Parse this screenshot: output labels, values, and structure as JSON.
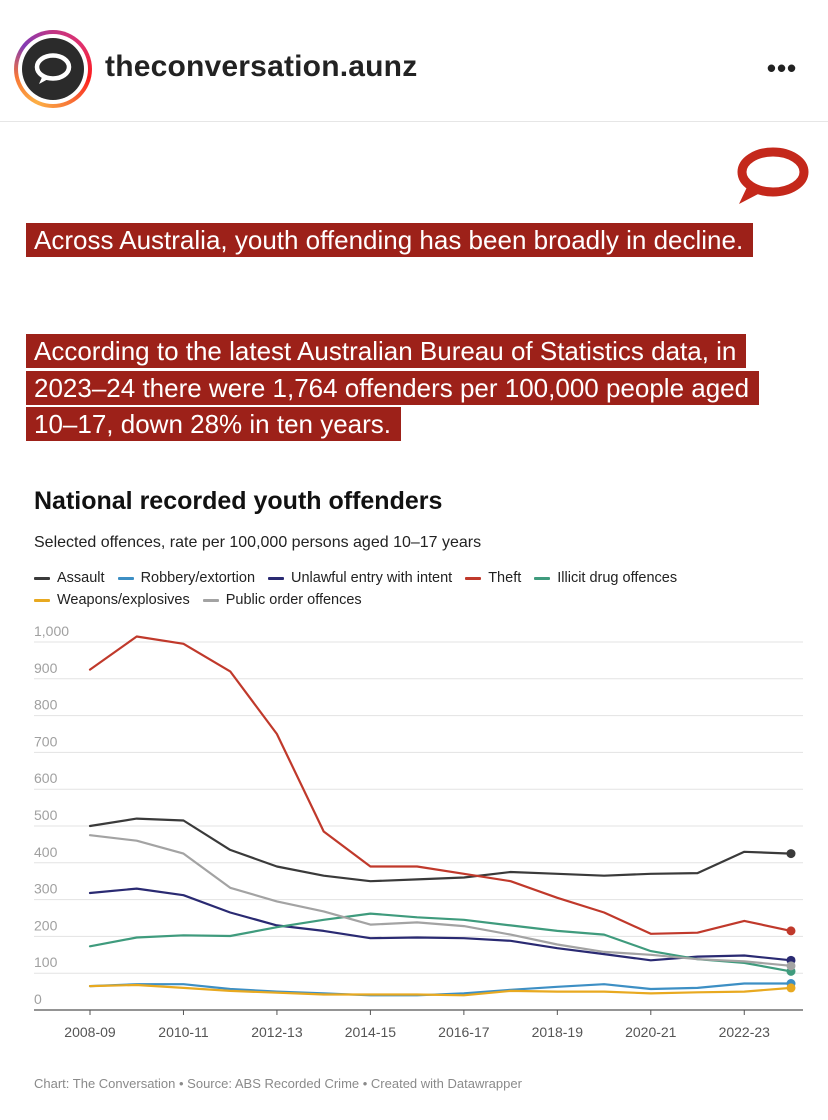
{
  "header": {
    "account_name": "theconversation.aunz",
    "more_label": "•••"
  },
  "post": {
    "headline_1": "Across Australia, youth offending has been broadly in decline.",
    "headline_2": "According to the latest Australian Bureau of Statistics data, in 2023–24 there were 1,764 offenders per 100,000 people aged 10–17, down 28% in ten years."
  },
  "colors": {
    "brand_red": "#9d2119",
    "assault": "#3a3a3a",
    "robbery": "#3d8fc4",
    "unlawful": "#2a2a72",
    "theft": "#c0392b",
    "drug": "#3f9b7d",
    "weapons": "#e8a920",
    "public_order": "#a3a3a3"
  },
  "chart_data": {
    "type": "line",
    "title": "National recorded youth offenders",
    "subtitle": "Selected offences, rate per 100,000 persons aged 10–17 years",
    "xlabel": "",
    "ylabel": "",
    "ylim": [
      0,
      1000
    ],
    "y_ticks": [
      "1,000",
      "900",
      "800",
      "700",
      "600",
      "500",
      "400",
      "300",
      "200",
      "100",
      "0"
    ],
    "x_ticks": [
      "2008-09",
      "2010-11",
      "2012-13",
      "2014-15",
      "2016-17",
      "2018-19",
      "2020-21",
      "2022-23"
    ],
    "x": [
      "2008-09",
      "2009-10",
      "2010-11",
      "2011-12",
      "2012-13",
      "2013-14",
      "2014-15",
      "2015-16",
      "2016-17",
      "2017-18",
      "2018-19",
      "2019-20",
      "2020-21",
      "2021-22",
      "2022-23",
      "2023-24"
    ],
    "legend_position": "top",
    "series": [
      {
        "name": "Assault",
        "color": "#3a3a3a",
        "values": [
          500,
          520,
          515,
          435,
          390,
          365,
          350,
          355,
          360,
          375,
          370,
          365,
          370,
          372,
          430,
          425
        ]
      },
      {
        "name": "Robbery/extortion",
        "color": "#3d8fc4",
        "values": [
          65,
          70,
          70,
          57,
          50,
          45,
          40,
          40,
          45,
          55,
          63,
          70,
          57,
          60,
          72,
          72
        ]
      },
      {
        "name": "Unlawful entry with intent",
        "color": "#2a2a72",
        "values": [
          318,
          330,
          312,
          265,
          230,
          215,
          195,
          197,
          195,
          188,
          168,
          152,
          135,
          145,
          148,
          135
        ]
      },
      {
        "name": "Theft",
        "color": "#c0392b",
        "values": [
          925,
          1015,
          995,
          920,
          750,
          485,
          390,
          390,
          370,
          350,
          305,
          265,
          207,
          210,
          242,
          215
        ]
      },
      {
        "name": "Illicit drug offences",
        "color": "#3f9b7d",
        "values": [
          173,
          197,
          203,
          201,
          225,
          245,
          262,
          252,
          245,
          230,
          215,
          205,
          160,
          138,
          128,
          105
        ]
      },
      {
        "name": "Weapons/explosives",
        "color": "#e8a920",
        "values": [
          65,
          68,
          60,
          52,
          47,
          42,
          42,
          42,
          40,
          52,
          50,
          50,
          45,
          48,
          50,
          60
        ]
      },
      {
        "name": "Public order offences",
        "color": "#a3a3a3",
        "values": [
          475,
          460,
          425,
          332,
          295,
          268,
          232,
          238,
          228,
          205,
          178,
          158,
          150,
          138,
          132,
          120
        ]
      }
    ]
  },
  "footer": {
    "credit": "Chart: The Conversation • Source: ABS Recorded Crime • Created with Datawrapper"
  }
}
